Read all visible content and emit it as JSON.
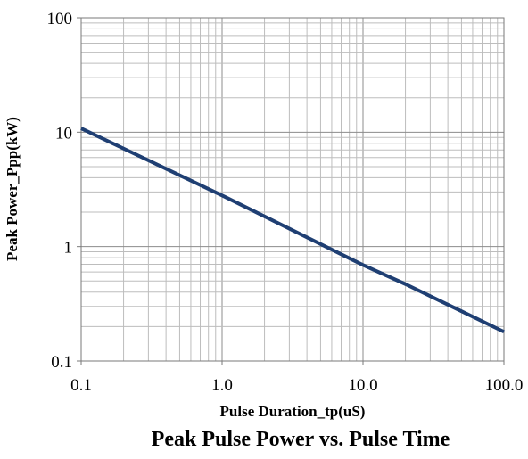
{
  "chart_data": {
    "type": "line",
    "title": "Peak Pulse Power vs. Pulse Time",
    "xlabel": "Pulse Duration_tp(uS)",
    "ylabel": "Peak  Power_Ppp(kW)",
    "x_scale": "log",
    "y_scale": "log",
    "xlim": [
      0.1,
      100
    ],
    "ylim": [
      0.1,
      100
    ],
    "x_ticks": [
      0.1,
      1,
      10,
      100
    ],
    "x_tick_labels": [
      "0.1",
      "1.0",
      "10.0",
      "100.0"
    ],
    "y_ticks": [
      0.1,
      1,
      10,
      100
    ],
    "y_tick_labels": [
      "0.1",
      "1",
      "10",
      "100"
    ],
    "grid": true,
    "legend": "none",
    "colors": {
      "series": "#1f3f73",
      "grid_minor": "#bdbdbd",
      "grid_major": "#8c8c8c",
      "axis": "#7a7a7a"
    },
    "series": [
      {
        "x": [
          0.1,
          1,
          10,
          20,
          100
        ],
        "y": [
          10.8,
          2.8,
          0.69,
          0.47,
          0.18
        ]
      }
    ]
  }
}
